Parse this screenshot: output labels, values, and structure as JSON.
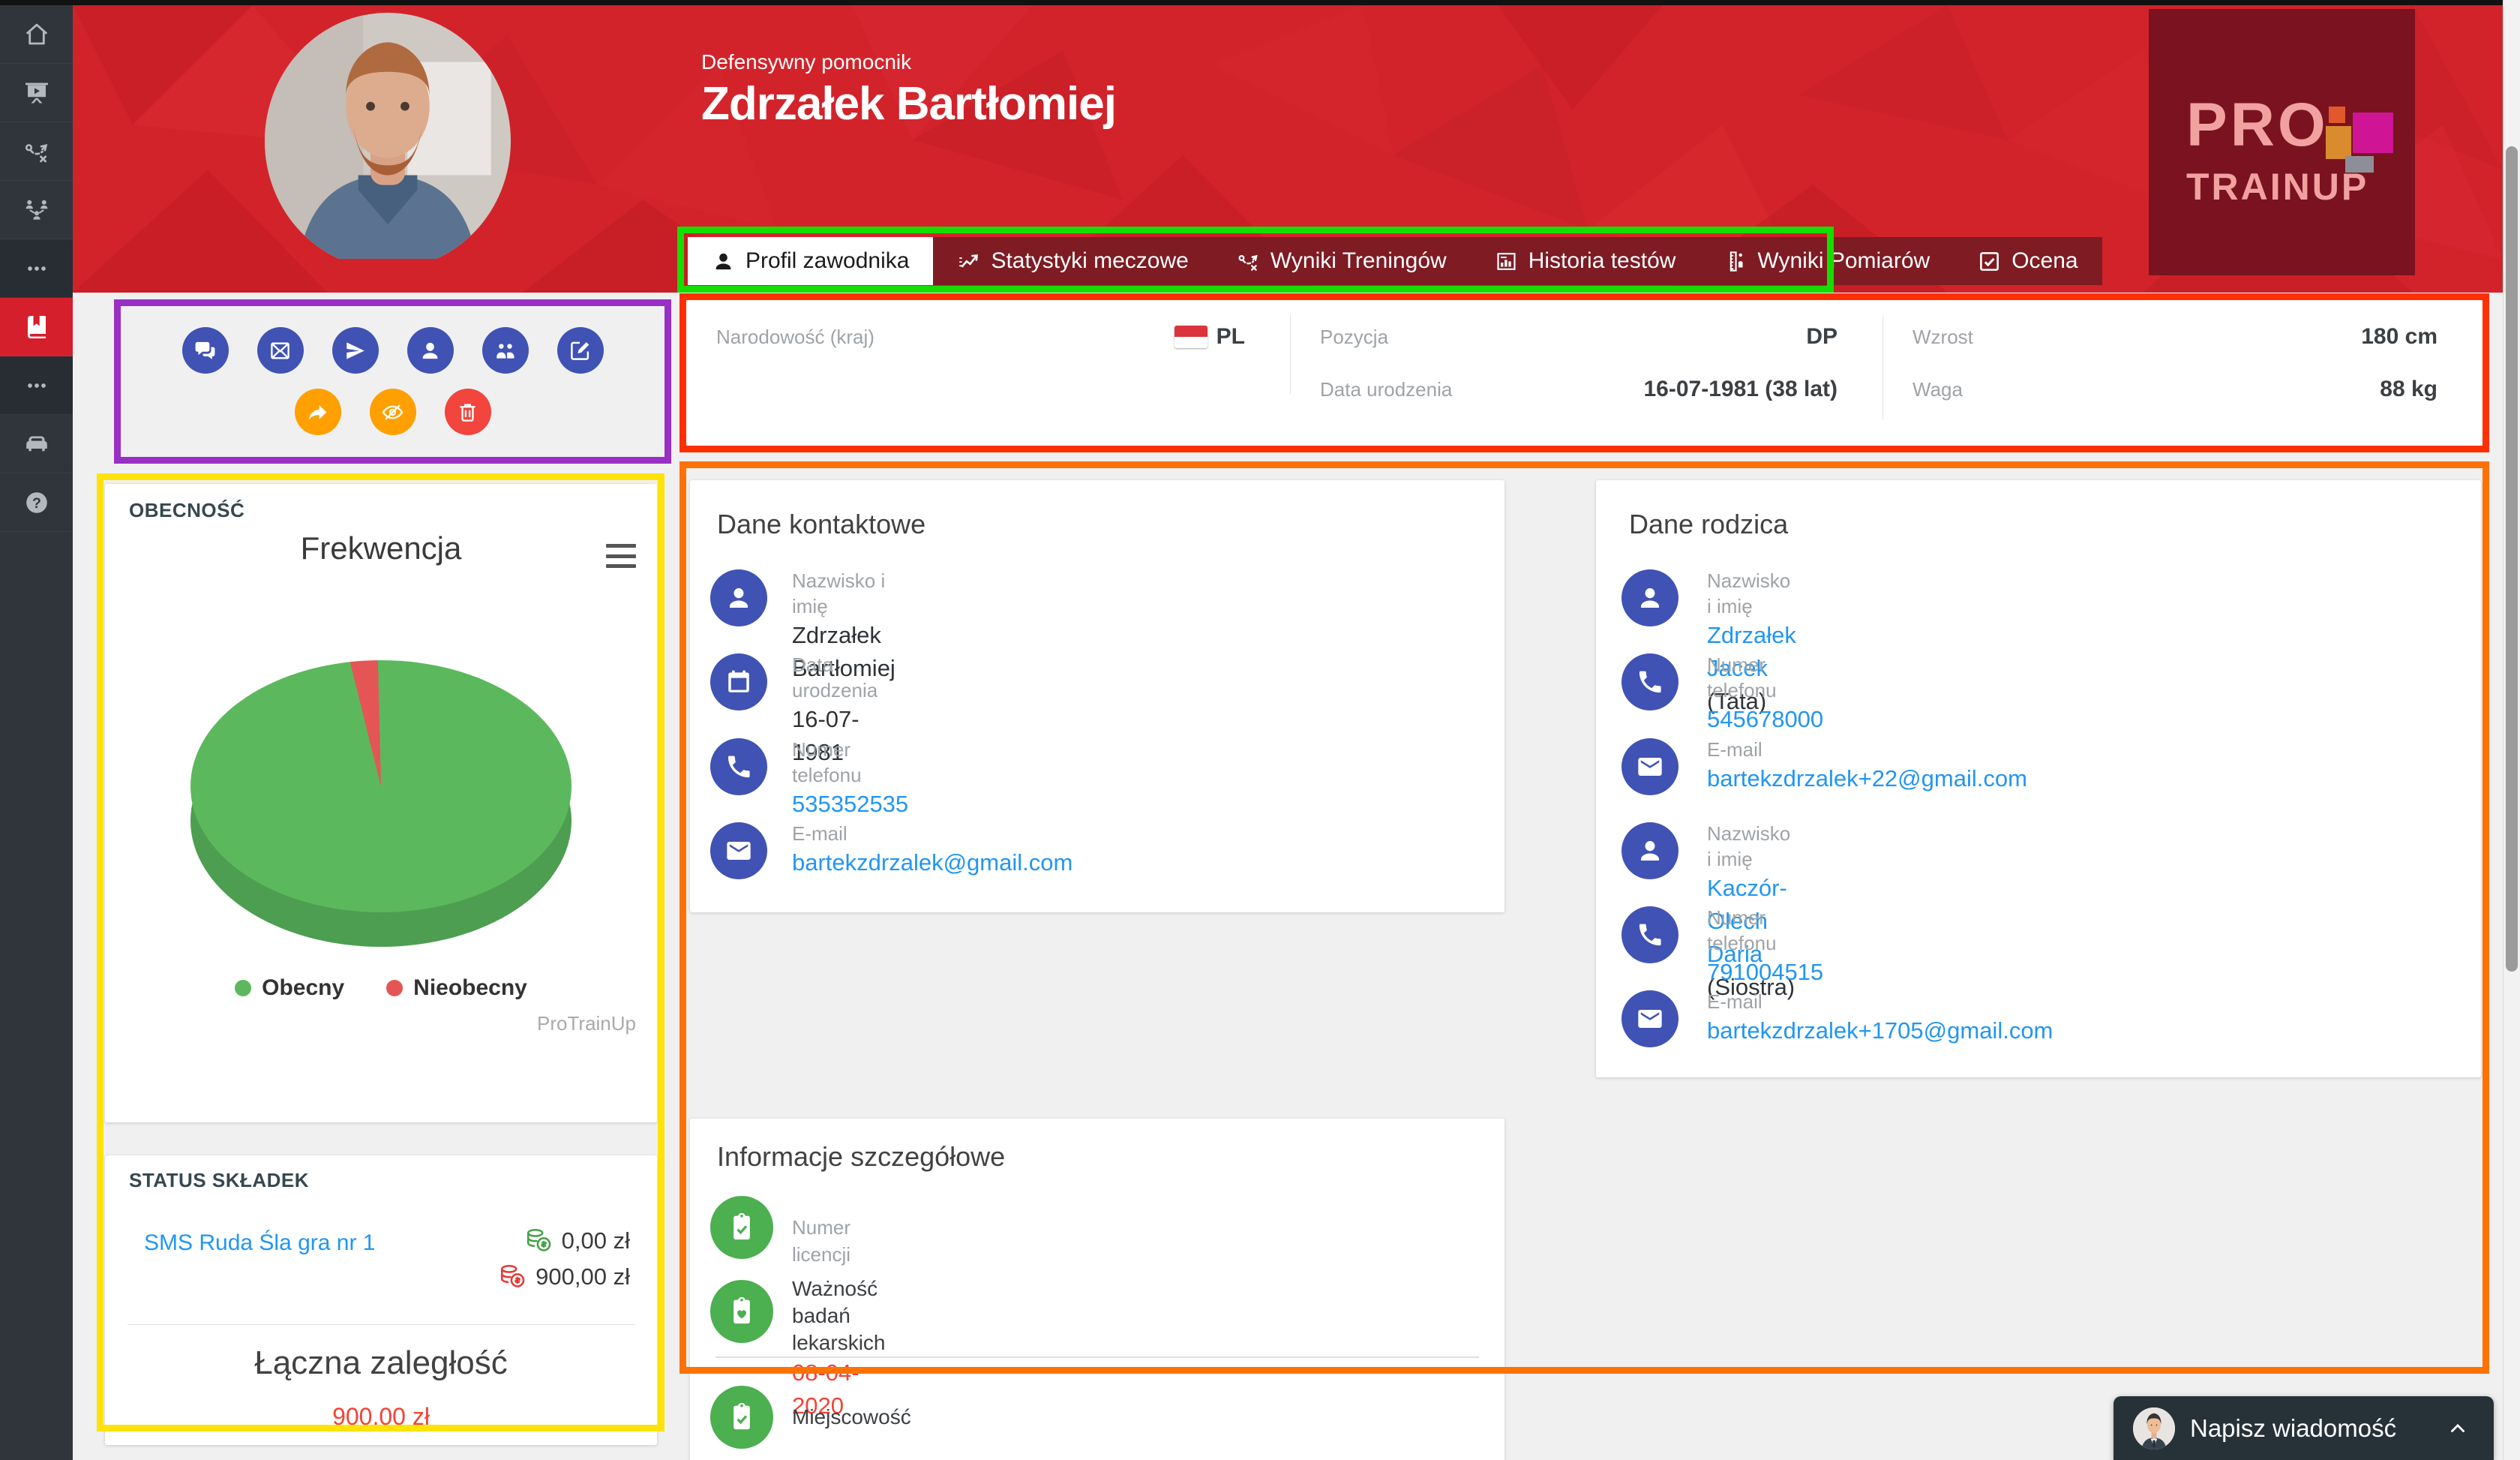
{
  "app": {
    "name": "ProTrainUp"
  },
  "header": {
    "role": "Defensywny pomocnik",
    "player_name": "Zdrzałek Bartłomiej",
    "logo_line1": "PRO",
    "logo_line2": "TRAINUP"
  },
  "sidebar": {
    "items": [
      {
        "icon": "home-icon",
        "name": "sidebar-item-home"
      },
      {
        "icon": "presentation-icon",
        "name": "sidebar-item-trainings"
      },
      {
        "icon": "tactics-icon",
        "name": "sidebar-item-tactics"
      },
      {
        "icon": "team-structure-icon",
        "name": "sidebar-item-team"
      },
      {
        "icon": "more-icon",
        "name": "sidebar-item-more-1",
        "variant": "dark"
      },
      {
        "icon": "book-icon",
        "name": "sidebar-item-library",
        "active": true
      },
      {
        "icon": "more-icon",
        "name": "sidebar-item-more-2",
        "variant": "dark"
      },
      {
        "icon": "sofa-icon",
        "name": "sidebar-item-lounge"
      },
      {
        "icon": "help-icon",
        "name": "sidebar-item-help"
      }
    ]
  },
  "tabs": {
    "items": [
      {
        "label": "Profil zawodnika",
        "icon": "person-icon",
        "active": true
      },
      {
        "label": "Statystyki meczowe",
        "icon": "line-chart-icon"
      },
      {
        "label": "Wyniki Treningów",
        "icon": "tactics-icon"
      },
      {
        "label": "Historia testów",
        "icon": "bar-chart-icon"
      },
      {
        "label": "Wyniki Pomiarów",
        "icon": "ruler-icon"
      },
      {
        "label": "Ocena",
        "icon": "check-square-icon"
      }
    ]
  },
  "info_bar": {
    "nationality_label": "Narodowość (kraj)",
    "nationality_value": "PL",
    "position_label": "Pozycja",
    "position_value": "DP",
    "birth_label": "Data urodzenia",
    "birth_value": "16-07-1981 (38 lat)",
    "height_label": "Wzrost",
    "height_value": "180 cm",
    "weight_label": "Waga",
    "weight_value": "88 kg"
  },
  "actions": {
    "row1": [
      {
        "icon": "comments-icon",
        "name": "message-button",
        "color": "#4052b4"
      },
      {
        "icon": "envelope-x-icon",
        "name": "email-button",
        "color": "#4052b4"
      },
      {
        "icon": "send-icon",
        "name": "send-button",
        "color": "#4052b4"
      },
      {
        "icon": "person-icon",
        "name": "profile-button",
        "color": "#4052b4"
      },
      {
        "icon": "people-icon",
        "name": "group-button",
        "color": "#4052b4"
      },
      {
        "icon": "edit-icon",
        "name": "edit-button",
        "color": "#4052b4"
      }
    ],
    "row2": [
      {
        "icon": "share-icon",
        "name": "share-button",
        "color": "#ffa000"
      },
      {
        "icon": "eye-slash-icon",
        "name": "hide-button",
        "color": "#ffa000"
      },
      {
        "icon": "trash-icon",
        "name": "delete-button",
        "color": "#f1453d"
      }
    ]
  },
  "attendance": {
    "section_label": "OBECNOŚĆ",
    "watermark": "ProTrainUp"
  },
  "chart_data": {
    "type": "pie",
    "title": "Frekwencja",
    "labels": [
      "Obecny",
      "Nieobecny"
    ],
    "values": [
      96.5,
      3.5
    ],
    "colors": [
      "#5cb85c",
      "#e55555"
    ],
    "style": "3d",
    "legend_position": "bottom",
    "start_angle_deg": -14,
    "watermark": "ProTrainUp"
  },
  "fees": {
    "section_label": "STATUS SKŁADEK",
    "item_label": "SMS Ruda Śla gra nr 1",
    "paid_value": "0,00 zł",
    "due_value": "900,00 zł",
    "total_label": "Łączna zaległość",
    "total_value": "900,00 zł"
  },
  "contact_card": {
    "title": "Dane kontaktowe",
    "rows": [
      {
        "icon": "person-icon",
        "label": "Nazwisko i imię",
        "value": "Zdrzałek Bartłomiej",
        "type": "text"
      },
      {
        "icon": "calendar-icon",
        "label": "Data urodzenia",
        "value": "16-07-1981",
        "type": "text"
      },
      {
        "icon": "phone-icon",
        "label": "Numer telefonu",
        "value": "535352535",
        "type": "link"
      },
      {
        "icon": "envelope-icon",
        "label": "E-mail",
        "value": "bartekzdrzalek@gmail.com",
        "type": "link"
      }
    ]
  },
  "parent_card": {
    "title": "Dane rodzica",
    "rows": [
      {
        "icon": "person-icon",
        "label": "Nazwisko i imię",
        "value": "Zdrzałek Jacek",
        "suffix": " (Tata)",
        "type": "link"
      },
      {
        "icon": "phone-icon",
        "label": "Numer telefonu",
        "value": "545678000",
        "suffix": "",
        "type": "link"
      },
      {
        "icon": "envelope-icon",
        "label": "E-mail",
        "value": "bartekzdrzalek+22@gmail.com",
        "suffix": "",
        "type": "link"
      },
      {
        "icon": "person-icon",
        "label": "Nazwisko i imię",
        "value": "Kaczór-Olech Daria",
        "suffix": " (Siostra)",
        "type": "link"
      },
      {
        "icon": "phone-icon",
        "label": "Numer telefonu",
        "value": "791004515",
        "suffix": "",
        "type": "link"
      },
      {
        "icon": "envelope-icon",
        "label": "E-mail",
        "value": "bartekzdrzalek+1705@gmail.com",
        "suffix": "",
        "type": "link"
      }
    ]
  },
  "details_card": {
    "title": "Informacje szczegółowe",
    "rows": [
      {
        "icon": "clipboard-check-icon",
        "label": "Numer licencji",
        "label_muted": true,
        "value": ""
      },
      {
        "icon": "clipboard-heart-icon",
        "label": "Ważność badań lekarskich",
        "label_muted": false,
        "value": "08-04-2020",
        "value_red": true,
        "divider_after": true
      },
      {
        "icon": "clipboard-check-icon",
        "label": "Miejscowość",
        "label_muted": false,
        "value": ""
      }
    ]
  },
  "chat": {
    "label": "Napisz wiadomość"
  },
  "colors": {
    "header_red": "#d2232b",
    "tab_inactive_maroon": "#7e1b23",
    "sidebar_dark": "#2f353a",
    "sidebar_active_red": "#d51f2c",
    "icon_circle_blue": "#4052b4",
    "icon_circle_green": "#4caf50",
    "link_blue": "#2196f3",
    "alert_red": "#f44336",
    "pie_green": "#5cb85c",
    "pie_red": "#e55555",
    "chat_dark": "#263238"
  },
  "annotations": {
    "boxes": [
      {
        "name": "annotation-box-tabs",
        "color": "#16dd00"
      },
      {
        "name": "annotation-box-actions",
        "color": "#9a2fc4"
      },
      {
        "name": "annotation-box-info-bar",
        "color": "#ff2f00"
      },
      {
        "name": "annotation-box-left-panels",
        "color": "#ffe308"
      },
      {
        "name": "annotation-box-cards",
        "color": "#ff7100"
      }
    ]
  }
}
